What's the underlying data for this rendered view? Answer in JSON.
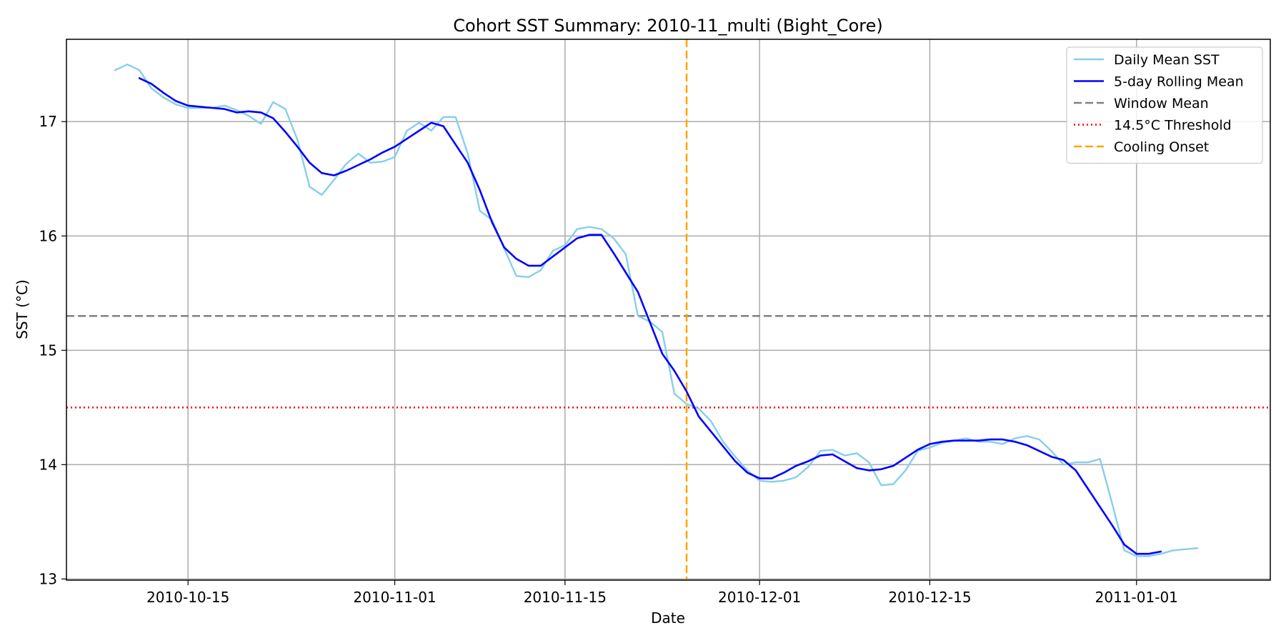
{
  "chart_data": {
    "type": "line",
    "title": "Cohort SST Summary: 2010-11_multi (Bight_Core)",
    "xlabel": "Date",
    "ylabel": "SST (°C)",
    "x_start": "2010-10-09",
    "xlim": [
      "2010-10-05",
      "2011-01-12"
    ],
    "ylim": [
      12.99,
      17.72
    ],
    "grid": true,
    "legend_position": "upper right",
    "x_ticks": [
      "2010-10-15",
      "2010-11-01",
      "2010-11-15",
      "2010-12-01",
      "2010-12-15",
      "2011-01-01"
    ],
    "y_ticks": [
      13,
      14,
      15,
      16,
      17
    ],
    "series": [
      {
        "name": "Daily Mean SST",
        "color": "#87CEEB",
        "style": "solid",
        "start_date": "2010-10-09",
        "values": [
          17.45,
          17.5,
          17.45,
          17.29,
          17.21,
          17.15,
          17.12,
          17.12,
          17.12,
          17.14,
          17.1,
          17.05,
          16.98,
          17.17,
          17.11,
          16.84,
          16.43,
          16.36,
          16.49,
          16.63,
          16.72,
          16.64,
          16.65,
          16.69,
          16.92,
          16.99,
          16.92,
          17.04,
          17.04,
          16.72,
          16.22,
          16.14,
          15.89,
          15.65,
          15.64,
          15.7,
          15.87,
          15.92,
          16.06,
          16.08,
          16.06,
          15.98,
          15.84,
          15.3,
          15.25,
          15.16,
          14.62,
          14.53,
          14.49,
          14.38,
          14.2,
          14.07,
          13.95,
          13.86,
          13.85,
          13.86,
          13.89,
          13.98,
          14.12,
          14.13,
          14.08,
          14.1,
          14.02,
          13.82,
          13.83,
          13.95,
          14.12,
          14.15,
          14.19,
          14.21,
          14.23,
          14.2,
          14.2,
          14.18,
          14.23,
          14.25,
          14.22,
          14.12,
          14.0,
          14.02,
          14.02,
          14.05,
          13.66,
          13.25,
          13.2,
          13.2,
          13.22,
          13.25,
          13.26,
          13.27
        ]
      },
      {
        "name": "5-day Rolling Mean",
        "color": "#0000FF",
        "style": "solid",
        "start_date": "2010-10-11",
        "values": [
          17.38,
          17.33,
          17.25,
          17.18,
          17.14,
          17.13,
          17.12,
          17.11,
          17.08,
          17.09,
          17.08,
          17.03,
          16.91,
          16.78,
          16.64,
          16.55,
          16.53,
          16.57,
          16.62,
          16.67,
          16.73,
          16.78,
          16.85,
          16.92,
          16.99,
          16.96,
          16.8,
          16.64,
          16.4,
          16.12,
          15.9,
          15.8,
          15.74,
          15.74,
          15.82,
          15.9,
          15.98,
          16.01,
          16.01,
          15.85,
          15.68,
          15.51,
          15.24,
          14.97,
          14.82,
          14.64,
          14.42,
          14.29,
          14.16,
          14.03,
          13.93,
          13.88,
          13.88,
          13.93,
          13.99,
          14.03,
          14.08,
          14.09,
          14.03,
          13.97,
          13.95,
          13.96,
          13.99,
          14.06,
          14.13,
          14.18,
          14.2,
          14.21,
          14.21,
          14.21,
          14.22,
          14.22,
          14.2,
          14.17,
          14.12,
          14.07,
          14.04,
          13.95,
          13.79,
          13.63,
          13.47,
          13.3,
          13.22,
          13.22,
          13.24
        ]
      }
    ],
    "reference_lines": [
      {
        "name": "Window Mean",
        "orientation": "horizontal",
        "value": 15.3,
        "color": "#808080",
        "style": "dashed"
      },
      {
        "name": "14.5°C Threshold",
        "orientation": "horizontal",
        "value": 14.5,
        "color": "#FF0000",
        "style": "dotted"
      },
      {
        "name": "Cooling Onset",
        "orientation": "vertical",
        "value": "2010-11-25",
        "color": "#FFA500",
        "style": "dashed"
      }
    ]
  }
}
